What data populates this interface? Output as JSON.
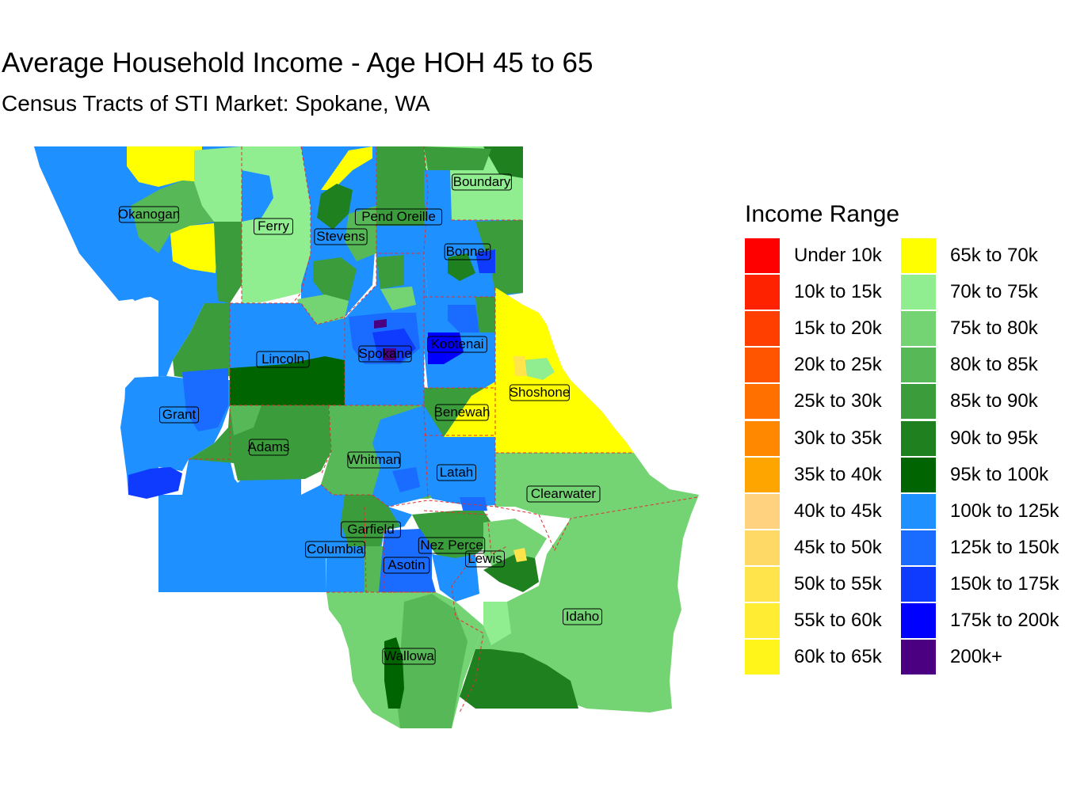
{
  "title": "Average Household Income - Age HOH 45 to 65",
  "subtitle": "Census Tracts of STI Market: Spokane, WA",
  "legend": {
    "title": "Income Range",
    "items": [
      {
        "label": "Under 10k",
        "color": "#FF0000"
      },
      {
        "label": "10k to 15k",
        "color": "#FF2200"
      },
      {
        "label": "15k to 20k",
        "color": "#FF3F00"
      },
      {
        "label": "20k to 25k",
        "color": "#FF5500"
      },
      {
        "label": "25k to 30k",
        "color": "#FF7000"
      },
      {
        "label": "30k to 35k",
        "color": "#FF8800"
      },
      {
        "label": "35k to 40k",
        "color": "#FFA500"
      },
      {
        "label": "40k to 45k",
        "color": "#FFD27F"
      },
      {
        "label": "45k to 50k",
        "color": "#FFD966"
      },
      {
        "label": "50k to 55k",
        "color": "#FFE44C"
      },
      {
        "label": "55k to 60k",
        "color": "#FFEC33"
      },
      {
        "label": "60k to 65k",
        "color": "#FFF51A"
      },
      {
        "label": "65k to 70k",
        "color": "#FFFF00"
      },
      {
        "label": "70k to 75k",
        "color": "#90EE90"
      },
      {
        "label": "75k to 80k",
        "color": "#74D474"
      },
      {
        "label": "80k to 85k",
        "color": "#57B857"
      },
      {
        "label": "85k to 90k",
        "color": "#3A9C3A"
      },
      {
        "label": "90k to 95k",
        "color": "#1E801E"
      },
      {
        "label": "95k to 100k",
        "color": "#006400"
      },
      {
        "label": "100k to 125k",
        "color": "#1E90FF"
      },
      {
        "label": "125k to 150k",
        "color": "#1A6BFF"
      },
      {
        "label": "150k to 175k",
        "color": "#0F3BFF"
      },
      {
        "label": "175k to 200k",
        "color": "#0000FF"
      },
      {
        "label": "200k+",
        "color": "#4B0082"
      }
    ]
  },
  "counties": [
    {
      "name": "Okanogan",
      "color": "#1E90FF"
    },
    {
      "name": "Ferry",
      "color": "#90EE90"
    },
    {
      "name": "Stevens",
      "color": "#1E90FF"
    },
    {
      "name": "Pend Oreille",
      "color": "#3A9C3A"
    },
    {
      "name": "Boundary",
      "color": "#90EE90"
    },
    {
      "name": "Bonner",
      "color": "#1E90FF"
    },
    {
      "name": "Lincoln",
      "color": "#1E90FF"
    },
    {
      "name": "Spokane",
      "color": "#1E90FF"
    },
    {
      "name": "Kootenai",
      "color": "#1E90FF"
    },
    {
      "name": "Shoshone",
      "color": "#FFFF00"
    },
    {
      "name": "Grant",
      "color": "#1E90FF"
    },
    {
      "name": "Benewah",
      "color": "#3A9C3A"
    },
    {
      "name": "Adams",
      "color": "#3A9C3A"
    },
    {
      "name": "Whitman",
      "color": "#57B857"
    },
    {
      "name": "Latah",
      "color": "#1E90FF"
    },
    {
      "name": "Clearwater",
      "color": "#74D474"
    },
    {
      "name": "Garfield",
      "color": "#1E90FF"
    },
    {
      "name": "Columbia",
      "color": "#1E90FF"
    },
    {
      "name": "Nez Perce",
      "color": "#3A9C3A"
    },
    {
      "name": "Asotin",
      "color": "#1A6BFF"
    },
    {
      "name": "Lewis",
      "color": "#74D474"
    },
    {
      "name": "Idaho",
      "color": "#74D474"
    },
    {
      "name": "Wallowa",
      "color": "#74D474"
    }
  ],
  "colors": {
    "boundary": "#E03030",
    "background": "#FFFFFF"
  }
}
